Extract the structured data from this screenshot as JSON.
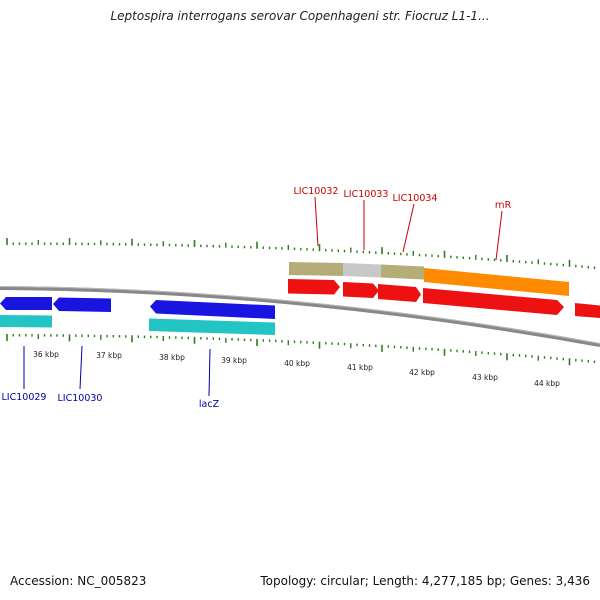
{
  "title": "Leptospira interrogans serovar Copenhageni str. Fiocruz L1-1...",
  "footer": {
    "accession": "Accession: NC_005823",
    "summary": "Topology: circular; Length: 4,277,185 bp; Genes: 3,436"
  },
  "colors": {
    "backbone": "#888888",
    "tick": "#2e7d1e",
    "forward_label": "#cc0000",
    "reverse_label": "#0000aa",
    "blue": "#1a14e0",
    "cyan": "#22c4c4",
    "red": "#ee1111",
    "olive": "#b5ad78",
    "grey": "#c8c8c8",
    "orange": "#ff8c00"
  },
  "kbp_labels": [
    "36 kbp",
    "37 kbp",
    "38 kbp",
    "39 kbp",
    "40 kbp",
    "41 kbp",
    "42 kbp",
    "43 kbp",
    "44 kbp"
  ],
  "forward_gene_labels": [
    "LIC10032",
    "LIC10033",
    "LIC10034",
    "rnR"
  ],
  "reverse_gene_labels": [
    "LIC10029",
    "LIC10030",
    "lacZ"
  ]
}
